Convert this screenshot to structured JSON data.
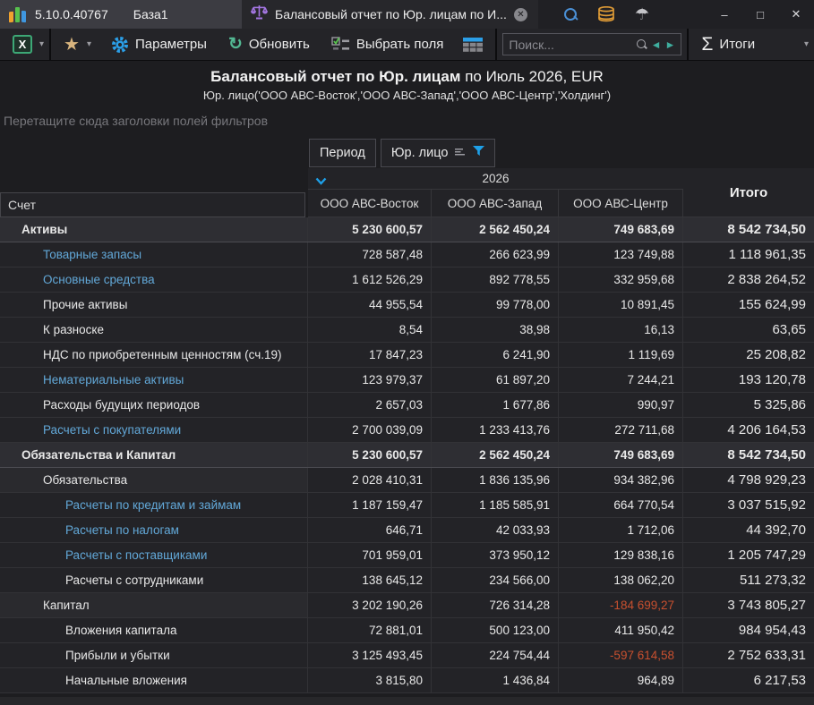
{
  "titlebar": {
    "version": "5.10.0.40767",
    "database": "База1",
    "tab_title": "Балансовый отчет по Юр. лицам по И...",
    "window": {
      "minimize": "–",
      "maximize": "□",
      "close": "✕"
    },
    "tab_close": "✕"
  },
  "toolbar": {
    "excel_x": "X",
    "parameters_label": "Параметры",
    "refresh_label": "Обновить",
    "choose_fields_label": "Выбрать поля",
    "totals_label": "Итоги",
    "search": {
      "placeholder": "Поиск...",
      "value": "",
      "prev": "◄",
      "next": "►"
    }
  },
  "icons": {
    "star": "★",
    "caret": "▾",
    "refresh": "↻",
    "sigma": "Σ",
    "umbrella": "☂"
  },
  "report": {
    "title_main": "Балансовый отчет по Юр. лицам",
    "title_suffix": " по Июль 2026, EUR",
    "subtitle": "Юр. лицо('ООО АВС-Восток','ООО АВС-Запад','ООО АВС-Центр','Холдинг')"
  },
  "filter_hint": "Перетащите сюда заголовки полей фильтров",
  "pivot": {
    "field_buttons": [
      {
        "label": "Период"
      },
      {
        "label": "Юр. лицо"
      }
    ],
    "row_area_label": "Счет",
    "year_header": "2026",
    "total_header": "Итого",
    "columns": [
      "ООО АВС-Восток",
      "ООО АВС-Запад",
      "ООО АВС-Центр"
    ],
    "rows": [
      {
        "label": "Активы",
        "level": 1,
        "group": true,
        "link": false,
        "values": [
          "5 230 600,57",
          "2 562 450,24",
          "749 683,69",
          "8 542 734,50"
        ]
      },
      {
        "label": "Товарные запасы",
        "level": 2,
        "group": false,
        "link": true,
        "values": [
          "728 587,48",
          "266 623,99",
          "123 749,88",
          "1 118 961,35"
        ]
      },
      {
        "label": "Основные средства",
        "level": 2,
        "group": false,
        "link": true,
        "values": [
          "1 612 526,29",
          "892 778,55",
          "332 959,68",
          "2 838 264,52"
        ]
      },
      {
        "label": "Прочие активы",
        "level": 2,
        "group": false,
        "link": false,
        "values": [
          "44 955,54",
          "99 778,00",
          "10 891,45",
          "155 624,99"
        ]
      },
      {
        "label": "К разноске",
        "level": 2,
        "group": false,
        "link": false,
        "values": [
          "8,54",
          "38,98",
          "16,13",
          "63,65"
        ]
      },
      {
        "label": "НДС по приобретенным ценностям (сч.19)",
        "level": 2,
        "group": false,
        "link": false,
        "values": [
          "17 847,23",
          "6 241,90",
          "1 119,69",
          "25 208,82"
        ]
      },
      {
        "label": "Нематериальные активы",
        "level": 2,
        "group": false,
        "link": true,
        "values": [
          "123 979,37",
          "61 897,20",
          "7 244,21",
          "193 120,78"
        ]
      },
      {
        "label": "Расходы будущих периодов",
        "level": 2,
        "group": false,
        "link": false,
        "values": [
          "2 657,03",
          "1 677,86",
          "990,97",
          "5 325,86"
        ]
      },
      {
        "label": "Расчеты с покупателями",
        "level": 2,
        "group": false,
        "link": true,
        "values": [
          "2 700 039,09",
          "1 233 413,76",
          "272 711,68",
          "4 206 164,53"
        ]
      },
      {
        "label": "Обязательства и Капитал",
        "level": 1,
        "group": true,
        "link": false,
        "values": [
          "5 230 600,57",
          "2 562 450,24",
          "749 683,69",
          "8 542 734,50"
        ]
      },
      {
        "label": "Обязательства",
        "level": 2,
        "group": false,
        "parent": true,
        "link": false,
        "values": [
          "2 028 410,31",
          "1 836 135,96",
          "934 382,96",
          "4 798 929,23"
        ]
      },
      {
        "label": "Расчеты по кредитам и займам",
        "level": 3,
        "group": false,
        "link": true,
        "values": [
          "1 187 159,47",
          "1 185 585,91",
          "664 770,54",
          "3 037 515,92"
        ]
      },
      {
        "label": "Расчеты по налогам",
        "level": 3,
        "group": false,
        "link": true,
        "values": [
          "646,71",
          "42 033,93",
          "1 712,06",
          "44 392,70"
        ]
      },
      {
        "label": "Расчеты с поставщиками",
        "level": 3,
        "group": false,
        "link": true,
        "values": [
          "701 959,01",
          "373 950,12",
          "129 838,16",
          "1 205 747,29"
        ]
      },
      {
        "label": "Расчеты с сотрудниками",
        "level": 3,
        "group": false,
        "link": false,
        "values": [
          "138 645,12",
          "234 566,00",
          "138 062,20",
          "511 273,32"
        ]
      },
      {
        "label": "Капитал",
        "level": 2,
        "group": false,
        "parent": true,
        "link": false,
        "values": [
          "3 202 190,26",
          "726 314,28",
          "-184 699,27",
          "3 743 805,27"
        ]
      },
      {
        "label": "Вложения капитала",
        "level": 3,
        "group": false,
        "link": false,
        "values": [
          "72 881,01",
          "500 123,00",
          "411 950,42",
          "984 954,43"
        ]
      },
      {
        "label": "Прибыли и убытки",
        "level": 3,
        "group": false,
        "link": false,
        "values": [
          "3 125 493,45",
          "224 754,44",
          "-597 614,58",
          "2 752 633,31"
        ]
      },
      {
        "label": "Начальные вложения",
        "level": 3,
        "group": false,
        "link": false,
        "values": [
          "3 815,80",
          "1 436,84",
          "964,89",
          "6 217,53"
        ]
      }
    ]
  },
  "colors": {
    "link_blue": "#62a8d8",
    "negative_red": "#c8502f",
    "accent_blue": "#1ea0e8",
    "star_gold": "#d8b47e",
    "refresh_green": "#53b893",
    "db_orange": "#dd9a36",
    "scales_purple": "#a476e2"
  }
}
